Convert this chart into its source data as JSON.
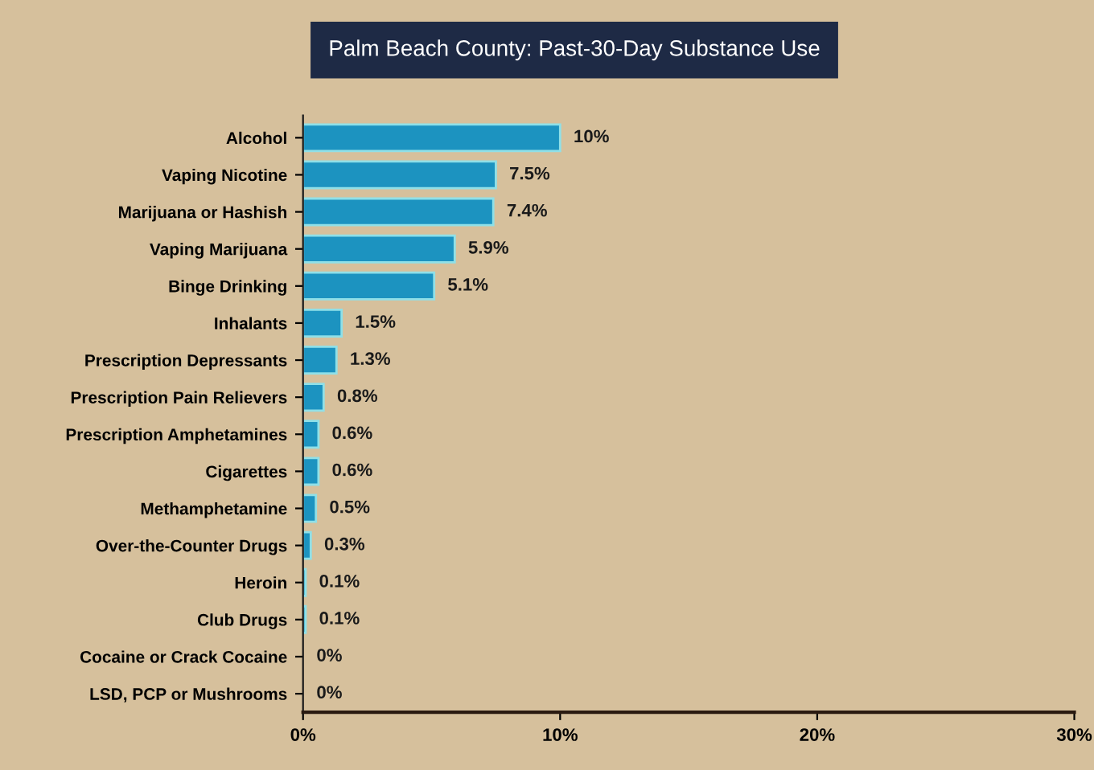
{
  "chart_data": {
    "type": "bar",
    "orientation": "horizontal",
    "title": "Palm Beach County: Past-30-Day Substance Use",
    "categories": [
      "Alcohol",
      "Vaping Nicotine",
      "Marijuana or Hashish",
      "Vaping Marijuana",
      "Binge Drinking",
      "Inhalants",
      "Prescription Depressants",
      "Prescription Pain Relievers",
      "Prescription Amphetamines",
      "Cigarettes",
      "Methamphetamine",
      "Over-the-Counter Drugs",
      "Heroin",
      "Club Drugs",
      "Cocaine or Crack Cocaine",
      "LSD, PCP or Mushrooms"
    ],
    "values": [
      10,
      7.5,
      7.4,
      5.9,
      5.1,
      1.5,
      1.3,
      0.8,
      0.6,
      0.6,
      0.5,
      0.3,
      0.1,
      0.1,
      0,
      0
    ],
    "value_labels": [
      "10%",
      "7.5%",
      "7.4%",
      "5.9%",
      "5.1%",
      "1.5%",
      "1.3%",
      "0.8%",
      "0.6%",
      "0.6%",
      "0.5%",
      "0.3%",
      "0.1%",
      "0.1%",
      "0%",
      "0%"
    ],
    "color": "#1c93c0",
    "xlim": [
      0,
      30
    ],
    "xticks": [
      {
        "value": 0,
        "label": "0%"
      },
      {
        "value": 10,
        "label": "10%"
      },
      {
        "value": 20,
        "label": "20%"
      },
      {
        "value": 30,
        "label": "30%"
      }
    ],
    "grid": false,
    "legend": false
  }
}
